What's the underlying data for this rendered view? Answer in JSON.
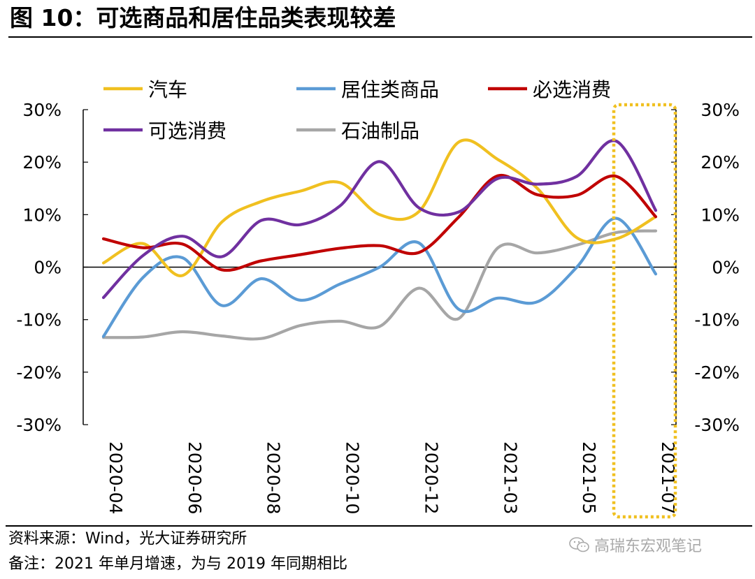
{
  "header": {
    "title": "图 10：可选商品和居住品类表现较差"
  },
  "footer": {
    "source": "资料来源：Wind，光大证券研究所",
    "note": "备注：2021 年单月增速，为与 2019 年同期相比"
  },
  "watermark": {
    "text": "高瑞东宏观笔记",
    "icon": "wechat-icon"
  },
  "chart_data": {
    "type": "line",
    "title": "",
    "xlabel": "",
    "ylabel": "",
    "ylim": [
      -30,
      30
    ],
    "yticks": [
      -30,
      -20,
      -10,
      0,
      10,
      20,
      30
    ],
    "ytick_labels": [
      "-30%",
      "-20%",
      "-10%",
      "0%",
      "10%",
      "20%",
      "30%"
    ],
    "legend_position": "top",
    "x": [
      "2020-04",
      "2020-05",
      "2020-06",
      "2020-07",
      "2020-08",
      "2020-09",
      "2020-10",
      "2020-11",
      "2020-12",
      "2021-01",
      "2021-03",
      "2021-04",
      "2021-05",
      "2021-06",
      "2021-07"
    ],
    "xtick_labels": [
      "2020-04",
      "2020-06",
      "2020-08",
      "2020-10",
      "2020-12",
      "2021-03",
      "2021-05",
      "2021-07"
    ],
    "xtick_index": [
      0,
      2,
      4,
      6,
      8,
      10,
      12,
      14
    ],
    "series": [
      {
        "name": "汽车",
        "color": "#F0C020",
        "values": [
          0.8,
          4.5,
          -1.6,
          8.6,
          12.5,
          14.5,
          16.1,
          10.0,
          10.6,
          23.8,
          20.5,
          15.0,
          5.6,
          5.4,
          9.6
        ]
      },
      {
        "name": "居住类商品",
        "color": "#5B9BD5",
        "values": [
          -13.2,
          -2.0,
          1.8,
          -7.3,
          -2.2,
          -6.3,
          -3.2,
          0.0,
          4.6,
          -8.0,
          -5.9,
          -6.6,
          0.0,
          9.3,
          -1.3
        ]
      },
      {
        "name": "必选消费",
        "color": "#C00000",
        "values": [
          5.4,
          3.7,
          4.4,
          -0.5,
          1.2,
          2.4,
          3.6,
          4.1,
          2.8,
          9.5,
          17.4,
          13.8,
          13.7,
          17.3,
          9.6
        ]
      },
      {
        "name": "可选消费",
        "color": "#7030A0",
        "values": [
          -5.8,
          2.2,
          5.9,
          2.0,
          8.9,
          8.1,
          11.7,
          20.1,
          11.3,
          10.5,
          16.9,
          15.8,
          17.3,
          24.0,
          10.8
        ]
      },
      {
        "name": "石油制品",
        "color": "#A6A6A6",
        "values": [
          -13.4,
          -13.3,
          -12.3,
          -13.1,
          -13.6,
          -11.1,
          -10.3,
          -11.3,
          -4.0,
          -9.8,
          3.7,
          2.7,
          4.2,
          6.6,
          6.9
        ]
      }
    ]
  }
}
